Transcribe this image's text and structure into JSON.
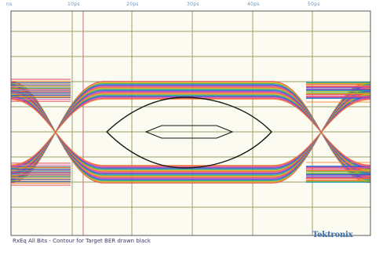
{
  "scope": {
    "tick_labels": [
      "ns",
      "10ps",
      "20ps",
      "30ps",
      "40ps",
      "50ps"
    ],
    "caption": "RxEq All Bits - Contour for Target BER drawn black",
    "brand": "Tektronix",
    "colors": {
      "background": "#fbfbf2",
      "grid": "#9aa26a",
      "frame": "#5a5a5a",
      "cursor": "#d46a78",
      "contour": "#151515",
      "eye_trace_colors": [
        "#e04050",
        "#f08030",
        "#d8c020",
        "#40a040",
        "#2aa0d0",
        "#3050c0",
        "#9040c0",
        "#e060b0"
      ]
    }
  }
}
